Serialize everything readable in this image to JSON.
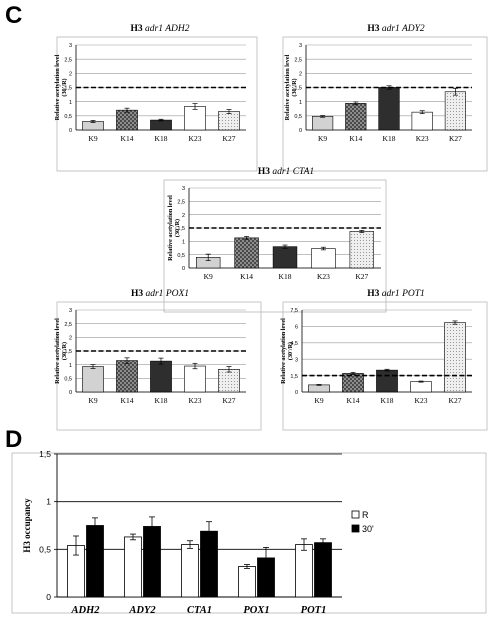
{
  "panels": {
    "c_label": "C",
    "d_label": "D"
  },
  "patterns": {
    "K9": {
      "fill": "#d2d2d2",
      "kind": "solid"
    },
    "K14": {
      "fill": "#8c8c8c",
      "kind": "checker"
    },
    "K18": {
      "fill": "#2e2e2e",
      "kind": "solid"
    },
    "K23": {
      "fill": "#ffffff",
      "kind": "solid"
    },
    "K27": {
      "fill": "#efefef",
      "kind": "dots"
    }
  },
  "chart_data": [
    {
      "type": "bar",
      "title_prefix": "H3 ",
      "title_gene": "adr1",
      "title_target": "ADH2",
      "ylabel": "Relative acetylation level (30'/R)",
      "categories": [
        "K9",
        "K14",
        "K18",
        "K23",
        "K27"
      ],
      "values": [
        0.3,
        0.7,
        0.35,
        0.83,
        0.65
      ],
      "errors": [
        0.04,
        0.07,
        0.03,
        0.1,
        0.07
      ],
      "ylim": [
        0,
        3
      ],
      "yticks": [
        "0",
        "0,5",
        "1",
        "1,5",
        "2",
        "2,5",
        "3"
      ],
      "threshold": 1.5,
      "grid": true
    },
    {
      "type": "bar",
      "title_prefix": "H3 ",
      "title_gene": "adr1",
      "title_target": "ADY2",
      "ylabel": "Relative acetylation level (30'/R)",
      "categories": [
        "K9",
        "K14",
        "K18",
        "K23",
        "K27"
      ],
      "values": [
        0.48,
        0.94,
        1.5,
        0.63,
        1.35
      ],
      "errors": [
        0.03,
        0.05,
        0.06,
        0.05,
        0.12
      ],
      "ylim": [
        0,
        3
      ],
      "yticks": [
        "0",
        "0,5",
        "1",
        "1,5",
        "2",
        "2,5",
        "3"
      ],
      "threshold": 1.5,
      "grid": true
    },
    {
      "type": "bar",
      "title_prefix": "H3 ",
      "title_gene": "adr1",
      "title_target": "CTA1",
      "ylabel": "Relative acetylation level (30'/R)",
      "categories": [
        "K9",
        "K14",
        "K18",
        "K23",
        "K27"
      ],
      "values": [
        0.4,
        1.13,
        0.8,
        0.73,
        1.37
      ],
      "errors": [
        0.12,
        0.05,
        0.06,
        0.05,
        0.04
      ],
      "ylim": [
        0,
        3
      ],
      "yticks": [
        "0",
        "0,5",
        "1",
        "1,5",
        "2",
        "2,5",
        "3"
      ],
      "threshold": 1.5,
      "grid": true
    },
    {
      "type": "bar",
      "title_prefix": "H3 ",
      "title_gene": "adr1",
      "title_target": "POX1",
      "ylabel": "Relative acetylation level (30'/R)",
      "categories": [
        "K9",
        "K14",
        "K18",
        "K23",
        "K27"
      ],
      "values": [
        0.93,
        1.15,
        1.13,
        0.95,
        0.83
      ],
      "errors": [
        0.07,
        0.1,
        0.11,
        0.1,
        0.1
      ],
      "ylim": [
        0,
        3
      ],
      "yticks": [
        "0",
        "0,5",
        "1",
        "1,5",
        "2",
        "2,5",
        "3"
      ],
      "threshold": 1.5,
      "grid": true
    },
    {
      "type": "bar",
      "title_prefix": "H3 ",
      "title_gene": "adr1",
      "title_target": "POT1",
      "ylabel": "Relative acetylation level (30'/R)",
      "categories": [
        "K9",
        "K14",
        "K18",
        "K23",
        "K27"
      ],
      "values": [
        0.65,
        1.7,
        2,
        0.95,
        6.35
      ],
      "errors": [
        0.04,
        0.1,
        0.08,
        0.05,
        0.15
      ],
      "ylim": [
        0,
        7.5
      ],
      "yticks": [
        "0",
        "1,5",
        "3",
        "4,5",
        "6",
        "7,5"
      ],
      "threshold": 1.5,
      "grid": true
    },
    {
      "type": "bar",
      "ylabel": "H3 occupancy",
      "categories": [
        "ADH2",
        "ADY2",
        "CTA1",
        "POX1",
        "POT1"
      ],
      "series": [
        {
          "name": "R",
          "color": "#ffffff",
          "values": [
            0.54,
            0.63,
            0.55,
            0.32,
            0.55
          ],
          "errors": [
            0.1,
            0.03,
            0.04,
            0.02,
            0.06
          ]
        },
        {
          "name": "30'",
          "color": "#000000",
          "values": [
            0.75,
            0.74,
            0.69,
            0.41,
            0.57
          ],
          "errors": [
            0.08,
            0.1,
            0.1,
            0.11,
            0.04
          ]
        }
      ],
      "ylim": [
        0,
        1.5
      ],
      "yticks": [
        "0",
        "0,5",
        "1",
        "1,5"
      ],
      "legend": "right",
      "grid": true
    }
  ]
}
